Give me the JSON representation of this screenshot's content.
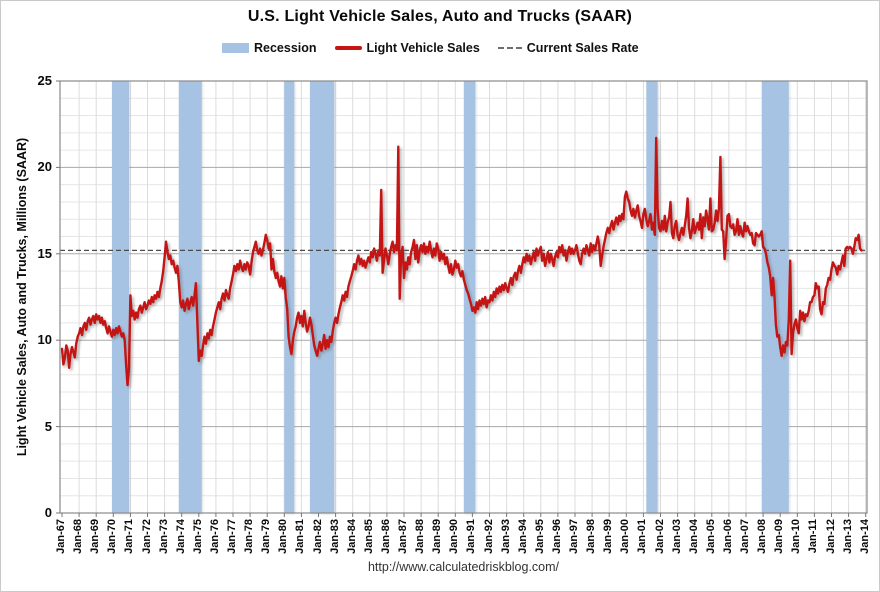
{
  "page": {
    "title": "U.S. Light Vehicle Sales, Auto and Trucks (SAAR)",
    "source_url": "http://www.calculatedriskblog.com/"
  },
  "legend": {
    "recession_label": "Recession",
    "sales_label": "Light Vehicle Sales",
    "current_rate_label": "Current Sales Rate"
  },
  "colors": {
    "recession_band": "#A7C3E3",
    "sales_line": "#C41414",
    "current_rate_line": "#4D4D4D",
    "major_grid": "#A8A8A8",
    "minor_grid": "#E6E6E6",
    "year_grid": "#DCDCDC",
    "plot_border": "#8A8A8A",
    "tick": "#777777"
  },
  "chart_data": {
    "type": "line",
    "title": "U.S. Light Vehicle Sales, Auto and Trucks (SAAR)",
    "xlabel": "",
    "ylabel": "Light Vehicle Sales, Auto and Trucks, Millions (SAAR)",
    "ylim": [
      0,
      25
    ],
    "y_ticks": [
      0,
      5,
      10,
      15,
      20,
      25
    ],
    "y_minor_step": 1,
    "grid": "on",
    "legend_position": "top",
    "x_tick_labels": [
      "Jan-67",
      "Jan-68",
      "Jan-69",
      "Jan-70",
      "Jan-71",
      "Jan-72",
      "Jan-73",
      "Jan-74",
      "Jan-75",
      "Jan-76",
      "Jan-77",
      "Jan-78",
      "Jan-79",
      "Jan-80",
      "Jan-81",
      "Jan-82",
      "Jan-83",
      "Jan-84",
      "Jan-85",
      "Jan-86",
      "Jan-87",
      "Jan-88",
      "Jan-89",
      "Jan-90",
      "Jan-91",
      "Jan-92",
      "Jan-93",
      "Jan-94",
      "Jan-95",
      "Jan-96",
      "Jan-97",
      "Jan-98",
      "Jan-99",
      "Jan-00",
      "Jan-01",
      "Jan-02",
      "Jan-03",
      "Jan-04",
      "Jan-05",
      "Jan-06",
      "Jan-07",
      "Jan-08",
      "Jan-09",
      "Jan-10",
      "Jan-11",
      "Jan-12",
      "Jan-13",
      "Jan-14"
    ],
    "frequency": "monthly",
    "start": "Jan-1967",
    "end": "Oct-2013",
    "start_year": 1967,
    "current_sales_rate": 15.2,
    "recessions": [
      [
        1969.92,
        1970.92
      ],
      [
        1973.83,
        1975.17
      ],
      [
        1980.0,
        1980.58
      ],
      [
        1981.5,
        1982.92
      ],
      [
        1990.5,
        1991.17
      ],
      [
        2001.17,
        2001.83
      ],
      [
        2007.92,
        2009.5
      ]
    ],
    "series": [
      {
        "name": "Light Vehicle Sales",
        "values": [
          9.5,
          8.6,
          9.0,
          9.7,
          9.4,
          8.4,
          9.2,
          9.6,
          9.3,
          9.0,
          9.8,
          10.2,
          10.4,
          10.7,
          10.3,
          10.8,
          11.0,
          10.6,
          11.1,
          11.3,
          10.9,
          11.2,
          11.4,
          11.0,
          11.5,
          11.2,
          11.4,
          11.0,
          11.3,
          10.9,
          11.1,
          10.7,
          10.4,
          10.8,
          10.5,
          10.2,
          10.6,
          10.3,
          10.7,
          10.4,
          10.8,
          10.5,
          10.2,
          10.4,
          10.0,
          8.6,
          7.4,
          8.4,
          12.6,
          11.4,
          11.7,
          11.2,
          11.6,
          11.3,
          11.8,
          12.0,
          11.6,
          11.9,
          12.2,
          11.8,
          12.0,
          12.3,
          12.1,
          12.5,
          12.2,
          12.6,
          12.4,
          12.8,
          12.5,
          13.0,
          13.4,
          14.0,
          14.8,
          15.7,
          15.1,
          14.7,
          14.9,
          14.4,
          14.6,
          14.2,
          13.9,
          14.3,
          13.4,
          12.2,
          11.9,
          12.3,
          11.7,
          12.1,
          12.4,
          11.8,
          12.2,
          12.5,
          12.0,
          12.6,
          13.3,
          11.0,
          8.8,
          9.4,
          9.1,
          9.7,
          10.2,
          9.8,
          10.4,
          10.1,
          10.6,
          10.3,
          10.8,
          11.2,
          11.6,
          11.9,
          12.2,
          11.8,
          12.4,
          12.7,
          12.3,
          12.9,
          12.6,
          12.4,
          13.0,
          13.4,
          13.8,
          14.3,
          14.0,
          14.4,
          14.1,
          14.6,
          14.2,
          14.0,
          14.4,
          14.1,
          14.5,
          14.3,
          13.8,
          14.5,
          15.1,
          15.4,
          15.7,
          15.2,
          15.0,
          15.3,
          14.9,
          15.2,
          15.6,
          16.1,
          15.8,
          15.3,
          15.6,
          14.1,
          14.7,
          14.0,
          13.6,
          13.9,
          13.4,
          13.1,
          13.7,
          13.0,
          13.6,
          12.5,
          11.8,
          10.2,
          9.6,
          9.2,
          10.0,
          10.5,
          10.8,
          11.3,
          11.6,
          11.0,
          11.4,
          10.8,
          11.7,
          11.0,
          10.5,
          10.8,
          11.3,
          10.9,
          10.3,
          9.7,
          9.4,
          9.1,
          9.5,
          9.9,
          9.4,
          9.8,
          10.3,
          9.5,
          10.0,
          9.6,
          10.2,
          9.9,
          10.5,
          11.0,
          11.3,
          11.0,
          11.5,
          11.9,
          12.2,
          12.6,
          12.3,
          12.8,
          12.5,
          13.1,
          13.4,
          13.7,
          14.0,
          14.4,
          14.1,
          14.6,
          14.9,
          14.4,
          14.7,
          14.3,
          14.6,
          14.2,
          14.5,
          14.8,
          14.5,
          15.1,
          14.8,
          15.3,
          15.0,
          14.6,
          15.2,
          14.9,
          18.7,
          13.9,
          14.6,
          15.3,
          14.9,
          14.4,
          15.0,
          15.4,
          15.7,
          15.1,
          15.5,
          15.2,
          21.2,
          12.4,
          14.9,
          15.4,
          13.6,
          14.5,
          14.1,
          14.8,
          14.4,
          15.1,
          15.4,
          15.8,
          14.7,
          15.5,
          14.5,
          15.2,
          15.5,
          15.1,
          15.6,
          15.0,
          15.4,
          15.1,
          15.7,
          15.2,
          14.8,
          15.3,
          14.9,
          15.6,
          15.3,
          14.6,
          15.1,
          14.7,
          15.0,
          14.4,
          14.8,
          14.3,
          13.9,
          14.4,
          13.8,
          14.1,
          14.6,
          14.2,
          14.4,
          13.9,
          13.7,
          14.0,
          13.5,
          13.2,
          12.9,
          12.7,
          12.4,
          12.1,
          11.7,
          11.9,
          11.6,
          12.2,
          11.8,
          12.3,
          12.0,
          12.4,
          12.1,
          12.5,
          11.9,
          12.3,
          12.2,
          12.6,
          12.3,
          12.8,
          12.5,
          13.0,
          12.7,
          13.1,
          12.8,
          13.2,
          12.9,
          13.3,
          13.0,
          12.8,
          13.3,
          13.6,
          13.2,
          13.7,
          13.9,
          13.5,
          14.0,
          14.3,
          13.9,
          14.4,
          14.8,
          14.5,
          15.0,
          14.6,
          14.9,
          14.4,
          14.8,
          15.1,
          14.6,
          15.3,
          14.9,
          15.2,
          15.4,
          14.6,
          15.0,
          14.3,
          14.7,
          15.1,
          14.5,
          15.0,
          14.7,
          14.3,
          14.8,
          15.1,
          14.8,
          15.4,
          15.1,
          15.5,
          14.9,
          15.2,
          14.6,
          15.1,
          15.4,
          15.0,
          15.3,
          15.0,
          15.2,
          15.5,
          15.0,
          14.6,
          14.4,
          15.0,
          15.3,
          15.0,
          15.5,
          15.2,
          14.9,
          15.6,
          15.1,
          15.5,
          15.2,
          15.6,
          16.0,
          15.5,
          14.3,
          14.9,
          15.4,
          15.8,
          16.2,
          16.5,
          16.2,
          16.6,
          16.9,
          16.4,
          16.8,
          17.1,
          16.7,
          17.2,
          16.9,
          17.3,
          17.0,
          18.3,
          18.6,
          18.2,
          18.0,
          17.5,
          17.2,
          17.6,
          17.1,
          17.5,
          17.8,
          17.2,
          16.9,
          16.5,
          17.3,
          17.6,
          17.0,
          16.6,
          16.9,
          17.3,
          16.4,
          16.8,
          16.1,
          21.7,
          17.6,
          16.5,
          16.3,
          16.9,
          16.4,
          17.2,
          16.3,
          16.8,
          17.1,
          18.0,
          16.2,
          15.9,
          16.6,
          16.9,
          16.1,
          15.8,
          16.2,
          16.5,
          16.1,
          16.6,
          17.2,
          18.2,
          16.5,
          15.9,
          16.3,
          17.0,
          16.2,
          16.5,
          16.8,
          16.4,
          17.3,
          15.9,
          17.1,
          16.6,
          17.5,
          17.0,
          16.4,
          18.2,
          16.3,
          16.4,
          16.8,
          17.5,
          16.9,
          17.6,
          20.6,
          16.4,
          16.3,
          14.7,
          15.7,
          17.2,
          17.3,
          16.6,
          16.5,
          16.7,
          16.1,
          16.3,
          17.0,
          16.1,
          16.6,
          16.2,
          16.0,
          16.8,
          16.3,
          16.6,
          16.3,
          16.1,
          16.2,
          15.6,
          15.5,
          16.2,
          16.1,
          16.0,
          16.1,
          16.3,
          15.4,
          15.3,
          15.0,
          14.5,
          14.2,
          13.7,
          12.6,
          13.6,
          12.5,
          10.9,
          10.2,
          10.3,
          9.6,
          9.1,
          9.7,
          9.3,
          9.9,
          9.7,
          11.2,
          14.6,
          9.2,
          10.4,
          10.9,
          11.2,
          10.7,
          10.4,
          11.7,
          11.2,
          11.6,
          11.1,
          11.5,
          11.4,
          11.7,
          12.2,
          12.2,
          12.5,
          12.6,
          13.3,
          13.0,
          13.1,
          11.8,
          11.5,
          12.2,
          12.1,
          13.0,
          13.2,
          13.6,
          13.5,
          14.1,
          14.5,
          14.3,
          14.2,
          13.8,
          14.3,
          14.1,
          14.5,
          14.9,
          14.3,
          15.3,
          15.4,
          15.3,
          15.4,
          15.3,
          15.0,
          15.4,
          15.9,
          15.8,
          16.1,
          15.3,
          15.2
        ]
      }
    ]
  }
}
